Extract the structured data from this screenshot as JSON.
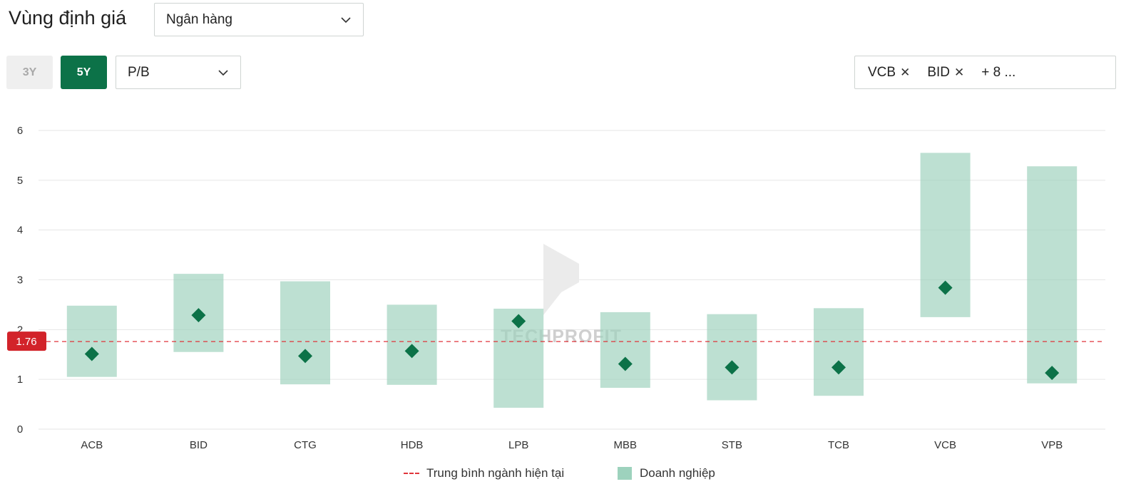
{
  "header": {
    "title": "Vùng định giá",
    "sector_select": {
      "value": "Ngân hàng",
      "icon": "chevron-down-icon"
    }
  },
  "controls": {
    "periods": [
      {
        "label": "3Y",
        "active": false
      },
      {
        "label": "5Y",
        "active": true
      }
    ],
    "metric_select": {
      "value": "P/B",
      "icon": "chevron-down-icon"
    },
    "ticker_filter": {
      "tags": [
        "VCB",
        "BID"
      ],
      "remove_icon": "close-icon",
      "more_label": "+ 8 ..."
    }
  },
  "watermark": "TECHPROFIT",
  "colors": {
    "accent": "#0c7248",
    "range_fill": "#9dd2bd",
    "marker": "#0c7248",
    "average_line": "#e0353b",
    "average_badge": "#d2232a"
  },
  "chart_data": {
    "type": "range",
    "categories": [
      "ACB",
      "BID",
      "CTG",
      "HDB",
      "LPB",
      "MBB",
      "STB",
      "TCB",
      "VCB",
      "VPB"
    ],
    "ranges": [
      {
        "low": 1.05,
        "high": 2.48
      },
      {
        "low": 1.55,
        "high": 3.12
      },
      {
        "low": 0.9,
        "high": 2.97
      },
      {
        "low": 0.89,
        "high": 2.5
      },
      {
        "low": 0.43,
        "high": 2.42
      },
      {
        "low": 0.83,
        "high": 2.35
      },
      {
        "low": 0.58,
        "high": 2.31
      },
      {
        "low": 0.67,
        "high": 2.43
      },
      {
        "low": 2.25,
        "high": 5.55
      },
      {
        "low": 0.92,
        "high": 5.28
      }
    ],
    "current": [
      1.51,
      2.29,
      1.47,
      1.57,
      2.17,
      1.31,
      1.24,
      1.24,
      2.84,
      1.13
    ],
    "average": 1.76,
    "average_label": "1.76",
    "ylim": [
      0,
      6
    ],
    "yticks": [
      "0",
      "1",
      "2",
      "3",
      "4",
      "5",
      "6"
    ],
    "grid": true,
    "legend": {
      "position": "bottom",
      "items": [
        "Trung bình ngành hiện tại",
        "Doanh nghiệp"
      ]
    }
  }
}
